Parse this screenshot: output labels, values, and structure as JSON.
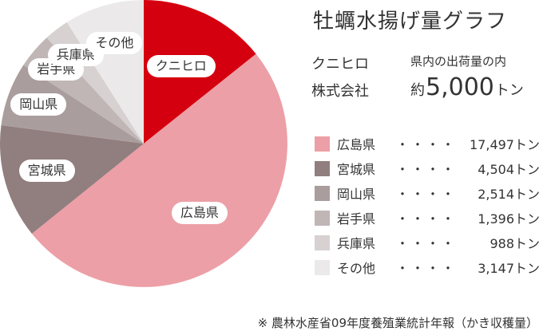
{
  "title": "牡蠣水揚げ量グラフ",
  "company": {
    "line1": "クニヒロ",
    "line2": "株式会社"
  },
  "shipment": {
    "label": "県内の出荷量の内",
    "prefix": "約",
    "value": "5,000",
    "unit": "トン"
  },
  "legend_dots": "・・・・",
  "source": "※ 農林水産省09年度養殖業統計年報（かき収穫量）",
  "chart_data": {
    "type": "pie",
    "title": "牡蠣水揚げ量グラフ",
    "slices": [
      {
        "label": "クニヒロ",
        "value": 5000,
        "color": "#d5000f"
      },
      {
        "label": "広島県",
        "value": 17497,
        "value_label": "17,497トン",
        "color": "#ec9fa6"
      },
      {
        "label": "宮城県",
        "value": 4504,
        "value_label": "4,504トン",
        "color": "#917e7e"
      },
      {
        "label": "岡山県",
        "value": 2514,
        "value_label": "2,514トン",
        "color": "#aa9d9d"
      },
      {
        "label": "岩手県",
        "value": 1396,
        "value_label": "1,396トン",
        "color": "#c0b6b6"
      },
      {
        "label": "兵庫県",
        "value": 988,
        "value_label": "988トン",
        "color": "#d7d1d1"
      },
      {
        "label": "その他",
        "value": 3147,
        "value_label": "3,147トン",
        "color": "#ebe9e9"
      }
    ]
  }
}
